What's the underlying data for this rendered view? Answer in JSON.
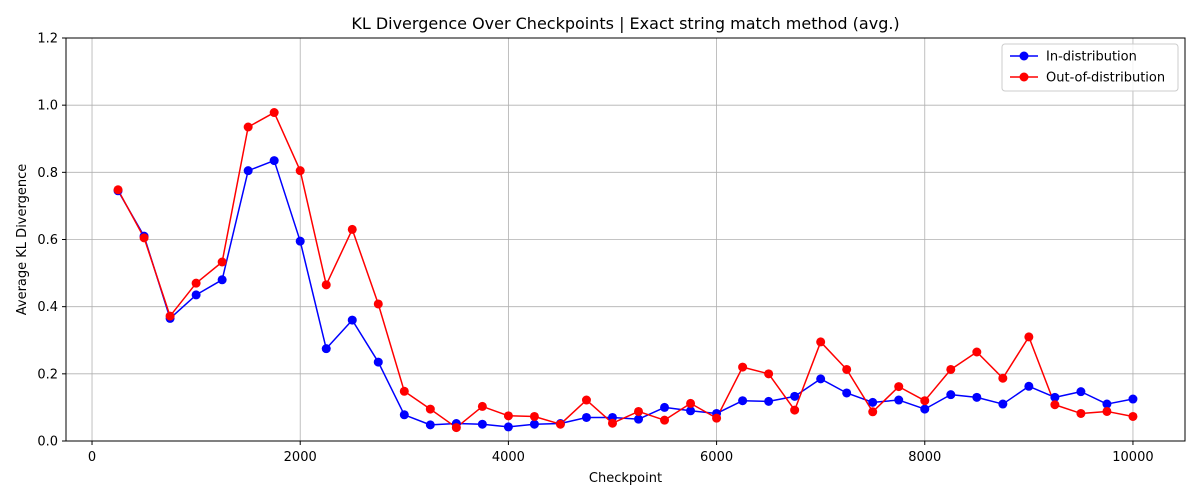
{
  "chart_data": {
    "type": "line",
    "title": "KL Divergence Over Checkpoints | Exact string match method (avg.)",
    "xlabel": "Checkpoint",
    "ylabel": "Average KL Divergence",
    "xlim": [
      -250,
      10500
    ],
    "ylim": [
      0,
      1.2
    ],
    "xticks": [
      0,
      2000,
      4000,
      6000,
      8000,
      10000
    ],
    "xtick_labels": [
      "0",
      "2000",
      "4000",
      "6000",
      "8000",
      "10000"
    ],
    "yticks": [
      0.0,
      0.2,
      0.4,
      0.6,
      0.8,
      1.0,
      1.2
    ],
    "ytick_labels": [
      "0.0",
      "0.2",
      "0.4",
      "0.6",
      "0.8",
      "1.0",
      "1.2"
    ],
    "grid": true,
    "legend_position": "top-right",
    "x": [
      250,
      500,
      750,
      1000,
      1250,
      1500,
      1750,
      2000,
      2250,
      2500,
      2750,
      3000,
      3250,
      3500,
      3750,
      4000,
      4250,
      4500,
      4750,
      5000,
      5250,
      5500,
      5750,
      6000,
      6250,
      6500,
      6750,
      7000,
      7250,
      7500,
      7750,
      8000,
      8250,
      8500,
      8750,
      9000,
      9250,
      9500,
      9750,
      10000
    ],
    "series": [
      {
        "name": "In-distribution",
        "color": "#0000ff",
        "values": [
          0.745,
          0.61,
          0.365,
          0.435,
          0.48,
          0.805,
          0.835,
          0.595,
          0.275,
          0.36,
          0.235,
          0.078,
          0.048,
          0.052,
          0.05,
          0.042,
          0.05,
          0.052,
          0.07,
          0.07,
          0.065,
          0.1,
          0.09,
          0.082,
          0.12,
          0.118,
          0.133,
          0.185,
          0.143,
          0.115,
          0.122,
          0.095,
          0.138,
          0.13,
          0.11,
          0.163,
          0.13,
          0.147,
          0.11,
          0.125
        ]
      },
      {
        "name": "Out-of-distribution",
        "color": "#ff0000",
        "values": [
          0.748,
          0.605,
          0.372,
          0.47,
          0.533,
          0.935,
          0.978,
          0.805,
          0.465,
          0.63,
          0.408,
          0.148,
          0.095,
          0.04,
          0.103,
          0.075,
          0.073,
          0.05,
          0.122,
          0.053,
          0.088,
          0.062,
          0.112,
          0.068,
          0.22,
          0.2,
          0.092,
          0.295,
          0.213,
          0.087,
          0.162,
          0.12,
          0.213,
          0.265,
          0.187,
          0.31,
          0.108,
          0.082,
          0.088,
          0.073
        ]
      }
    ]
  }
}
